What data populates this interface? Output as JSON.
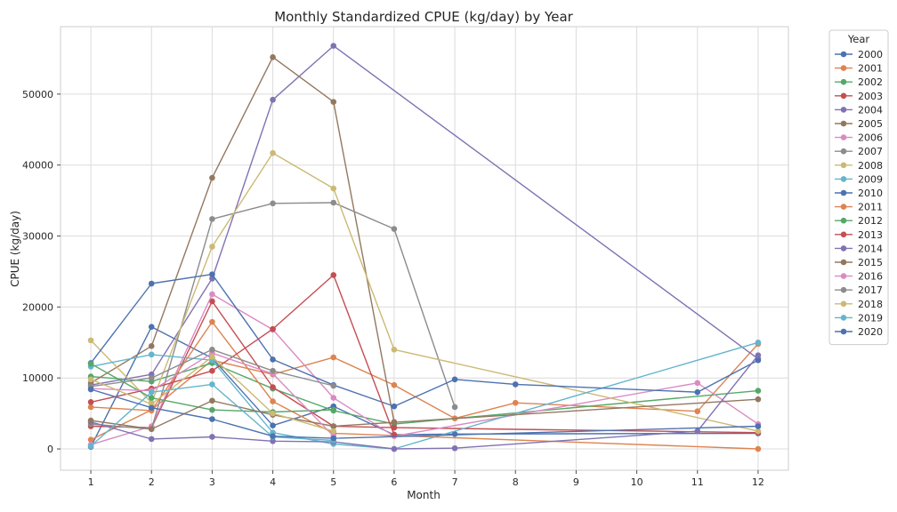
{
  "chart_data": {
    "type": "line",
    "title": "Monthly Standardized CPUE (kg/day) by Year",
    "xlabel": "Month",
    "ylabel": "CPUE (kg/day)",
    "xlim": [
      0.5,
      12.5
    ],
    "ylim": [
      -3000,
      59500
    ],
    "x_ticks": [
      1,
      2,
      3,
      4,
      5,
      6,
      7,
      8,
      9,
      10,
      11,
      12
    ],
    "y_ticks": [
      0,
      10000,
      20000,
      30000,
      40000,
      50000
    ],
    "grid": true,
    "legend_title": "Year",
    "legend_position": "outside-right",
    "series": [
      {
        "name": "2000",
        "color": "#4c72b0",
        "points": [
          [
            1,
            300
          ],
          [
            2,
            17200
          ],
          [
            3,
            12800
          ],
          [
            4,
            3300
          ],
          [
            5,
            6000
          ],
          [
            6,
            2000
          ],
          [
            7,
            2100
          ],
          [
            12,
            2200
          ]
        ]
      },
      {
        "name": "2001",
        "color": "#dd8452",
        "points": [
          [
            1,
            1300
          ],
          [
            2,
            5500
          ],
          [
            3,
            12500
          ],
          [
            4,
            10500
          ],
          [
            5,
            12900
          ],
          [
            6,
            9000
          ],
          [
            7,
            4300
          ],
          [
            8,
            6500
          ],
          [
            11,
            5300
          ],
          [
            12,
            14800
          ]
        ]
      },
      {
        "name": "2002",
        "color": "#55a868",
        "points": [
          [
            1,
            10200
          ],
          [
            2,
            9500
          ],
          [
            3,
            12100
          ],
          [
            4,
            8500
          ],
          [
            5,
            5400
          ],
          [
            6,
            3500
          ],
          [
            12,
            8200
          ]
        ]
      },
      {
        "name": "2003",
        "color": "#c44e52",
        "points": [
          [
            1,
            3200
          ],
          [
            2,
            3000
          ],
          [
            3,
            20800
          ],
          [
            4,
            8700
          ],
          [
            5,
            3200
          ],
          [
            6,
            3000
          ],
          [
            12,
            2300
          ]
        ]
      },
      {
        "name": "2004",
        "color": "#8172b3",
        "points": [
          [
            1,
            9000
          ],
          [
            2,
            10500
          ],
          [
            3,
            24000
          ],
          [
            4,
            49200
          ],
          [
            5,
            56800
          ],
          [
            12,
            12700
          ]
        ]
      },
      {
        "name": "2005",
        "color": "#937860",
        "points": [
          [
            1,
            9300
          ],
          [
            2,
            14500
          ],
          [
            3,
            38200
          ],
          [
            4,
            55200
          ],
          [
            5,
            48900
          ],
          [
            6,
            3800
          ]
        ]
      },
      {
        "name": "2006",
        "color": "#da8bc3",
        "points": [
          [
            1,
            600
          ],
          [
            2,
            3200
          ],
          [
            3,
            21800
          ],
          [
            4,
            16800
          ],
          [
            5,
            7200
          ],
          [
            6,
            1800
          ],
          [
            11,
            9300
          ],
          [
            12,
            3500
          ]
        ]
      },
      {
        "name": "2007",
        "color": "#8c8c8c",
        "points": [
          [
            1,
            3500
          ],
          [
            2,
            2800
          ],
          [
            3,
            32400
          ],
          [
            4,
            34600
          ],
          [
            5,
            34700
          ],
          [
            6,
            31000
          ],
          [
            7,
            5900
          ]
        ]
      },
      {
        "name": "2008",
        "color": "#ccb974",
        "points": [
          [
            1,
            15300
          ],
          [
            2,
            6500
          ],
          [
            3,
            28500
          ],
          [
            4,
            41700
          ],
          [
            5,
            36700
          ],
          [
            6,
            14000
          ],
          [
            12,
            2500
          ]
        ]
      },
      {
        "name": "2009",
        "color": "#64b5cd",
        "points": [
          [
            1,
            11600
          ],
          [
            2,
            13300
          ],
          [
            3,
            12500
          ],
          [
            4,
            2300
          ],
          [
            5,
            700
          ],
          [
            6,
            0
          ],
          [
            12,
            15000
          ]
        ]
      },
      {
        "name": "2010",
        "color": "#4c72b0",
        "points": [
          [
            1,
            12100
          ],
          [
            2,
            23300
          ],
          [
            3,
            24600
          ],
          [
            4,
            12600
          ],
          [
            5,
            9000
          ],
          [
            6,
            6000
          ],
          [
            7,
            9800
          ],
          [
            8,
            9100
          ],
          [
            11,
            8000
          ],
          [
            12,
            12500
          ]
        ]
      },
      {
        "name": "2011",
        "color": "#dd8452",
        "points": [
          [
            1,
            5900
          ],
          [
            2,
            5400
          ],
          [
            3,
            17900
          ],
          [
            4,
            6700
          ],
          [
            5,
            2200
          ],
          [
            12,
            0
          ]
        ]
      },
      {
        "name": "2012",
        "color": "#55a868",
        "points": [
          [
            1,
            12000
          ],
          [
            2,
            7200
          ],
          [
            3,
            5500
          ],
          [
            4,
            5200
          ],
          [
            5,
            5500
          ]
        ]
      },
      {
        "name": "2013",
        "color": "#c44e52",
        "points": [
          [
            1,
            6600
          ],
          [
            2,
            8500
          ],
          [
            3,
            11000
          ],
          [
            4,
            16900
          ],
          [
            5,
            24500
          ],
          [
            6,
            2000
          ]
        ]
      },
      {
        "name": "2014",
        "color": "#8172b3",
        "points": [
          [
            1,
            3800
          ],
          [
            2,
            1400
          ],
          [
            3,
            1700
          ],
          [
            4,
            1100
          ],
          [
            5,
            1000
          ],
          [
            6,
            0
          ],
          [
            7,
            100
          ],
          [
            11,
            2500
          ],
          [
            12,
            13200
          ]
        ]
      },
      {
        "name": "2015",
        "color": "#937860",
        "points": [
          [
            1,
            4000
          ],
          [
            2,
            2800
          ],
          [
            3,
            6800
          ],
          [
            4,
            4800
          ],
          [
            5,
            3200
          ],
          [
            12,
            7000
          ]
        ]
      },
      {
        "name": "2016",
        "color": "#da8bc3",
        "points": [
          [
            1,
            8500
          ],
          [
            2,
            8200
          ],
          [
            3,
            13500
          ],
          [
            4,
            10600
          ],
          [
            5,
            1800
          ]
        ]
      },
      {
        "name": "2017",
        "color": "#8c8c8c",
        "points": [
          [
            1,
            8800
          ],
          [
            2,
            10000
          ],
          [
            3,
            14000
          ],
          [
            4,
            11000
          ],
          [
            5,
            8900
          ]
        ]
      },
      {
        "name": "2018",
        "color": "#ccb974",
        "points": [
          [
            1,
            9800
          ],
          [
            2,
            6300
          ],
          [
            3,
            13000
          ],
          [
            4,
            5000
          ],
          [
            5,
            2500
          ]
        ]
      },
      {
        "name": "2019",
        "color": "#64b5cd",
        "points": [
          [
            1,
            400
          ],
          [
            2,
            8000
          ],
          [
            3,
            9100
          ],
          [
            4,
            1700
          ],
          [
            5,
            1200
          ]
        ]
      },
      {
        "name": "2020",
        "color": "#4c72b0",
        "points": [
          [
            1,
            8400
          ],
          [
            2,
            5800
          ],
          [
            3,
            4200
          ],
          [
            4,
            1800
          ],
          [
            5,
            1500
          ],
          [
            12,
            3200
          ]
        ]
      }
    ]
  }
}
